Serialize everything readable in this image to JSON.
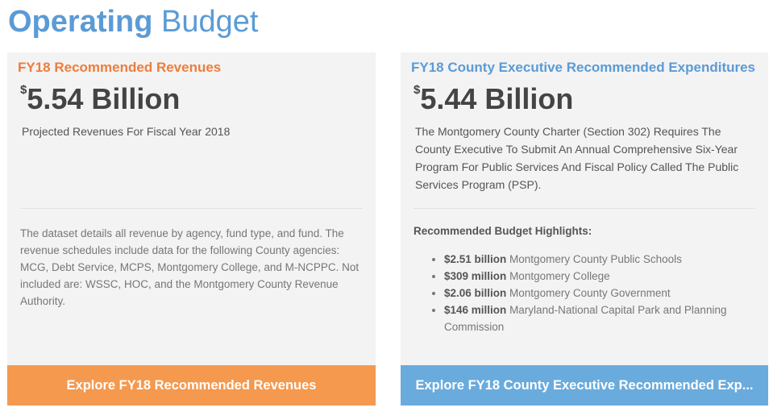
{
  "header": {
    "title_bold": "Operating",
    "title_light": "Budget"
  },
  "cards": [
    {
      "heading": "FY18 Recommended Revenues",
      "currency": "$",
      "amount": "5.54 Billion",
      "subtitle": "Projected Revenues For Fiscal Year 2018",
      "description": "The dataset details all revenue by agency, fund type, and fund. The revenue schedules include data for the following County agencies: MCG, Debt Service, MCPS, Montgomery College, and M-NCPPC. Not included are: WSSC, HOC, and the Montgomery County Revenue Authority.",
      "button": "Explore FY18 Recommended Revenues"
    },
    {
      "heading": "FY18 County Executive Recommended Expenditures",
      "currency": "$",
      "amount": "5.44 Billion",
      "subtitle": "The Montgomery County Charter (Section 302) Requires The County Executive To Submit An Annual Comprehensive Six-Year Program For Public Services And Fiscal Policy Called The Public Services Program (PSP).",
      "highlights_title": "Recommended Budget Highlights:",
      "highlights": [
        {
          "amount": "$2.51 billion",
          "label": "Montgomery County Public Schools"
        },
        {
          "amount": "$309 million",
          "label": "Montgomery College"
        },
        {
          "amount": "$2.06 billion",
          "label": "Montgomery County Government"
        },
        {
          "amount": "$146 million",
          "label": "Maryland-National Capital Park and Planning Commission"
        }
      ],
      "button": "Explore FY18 County Executive Recommended Exp..."
    }
  ]
}
